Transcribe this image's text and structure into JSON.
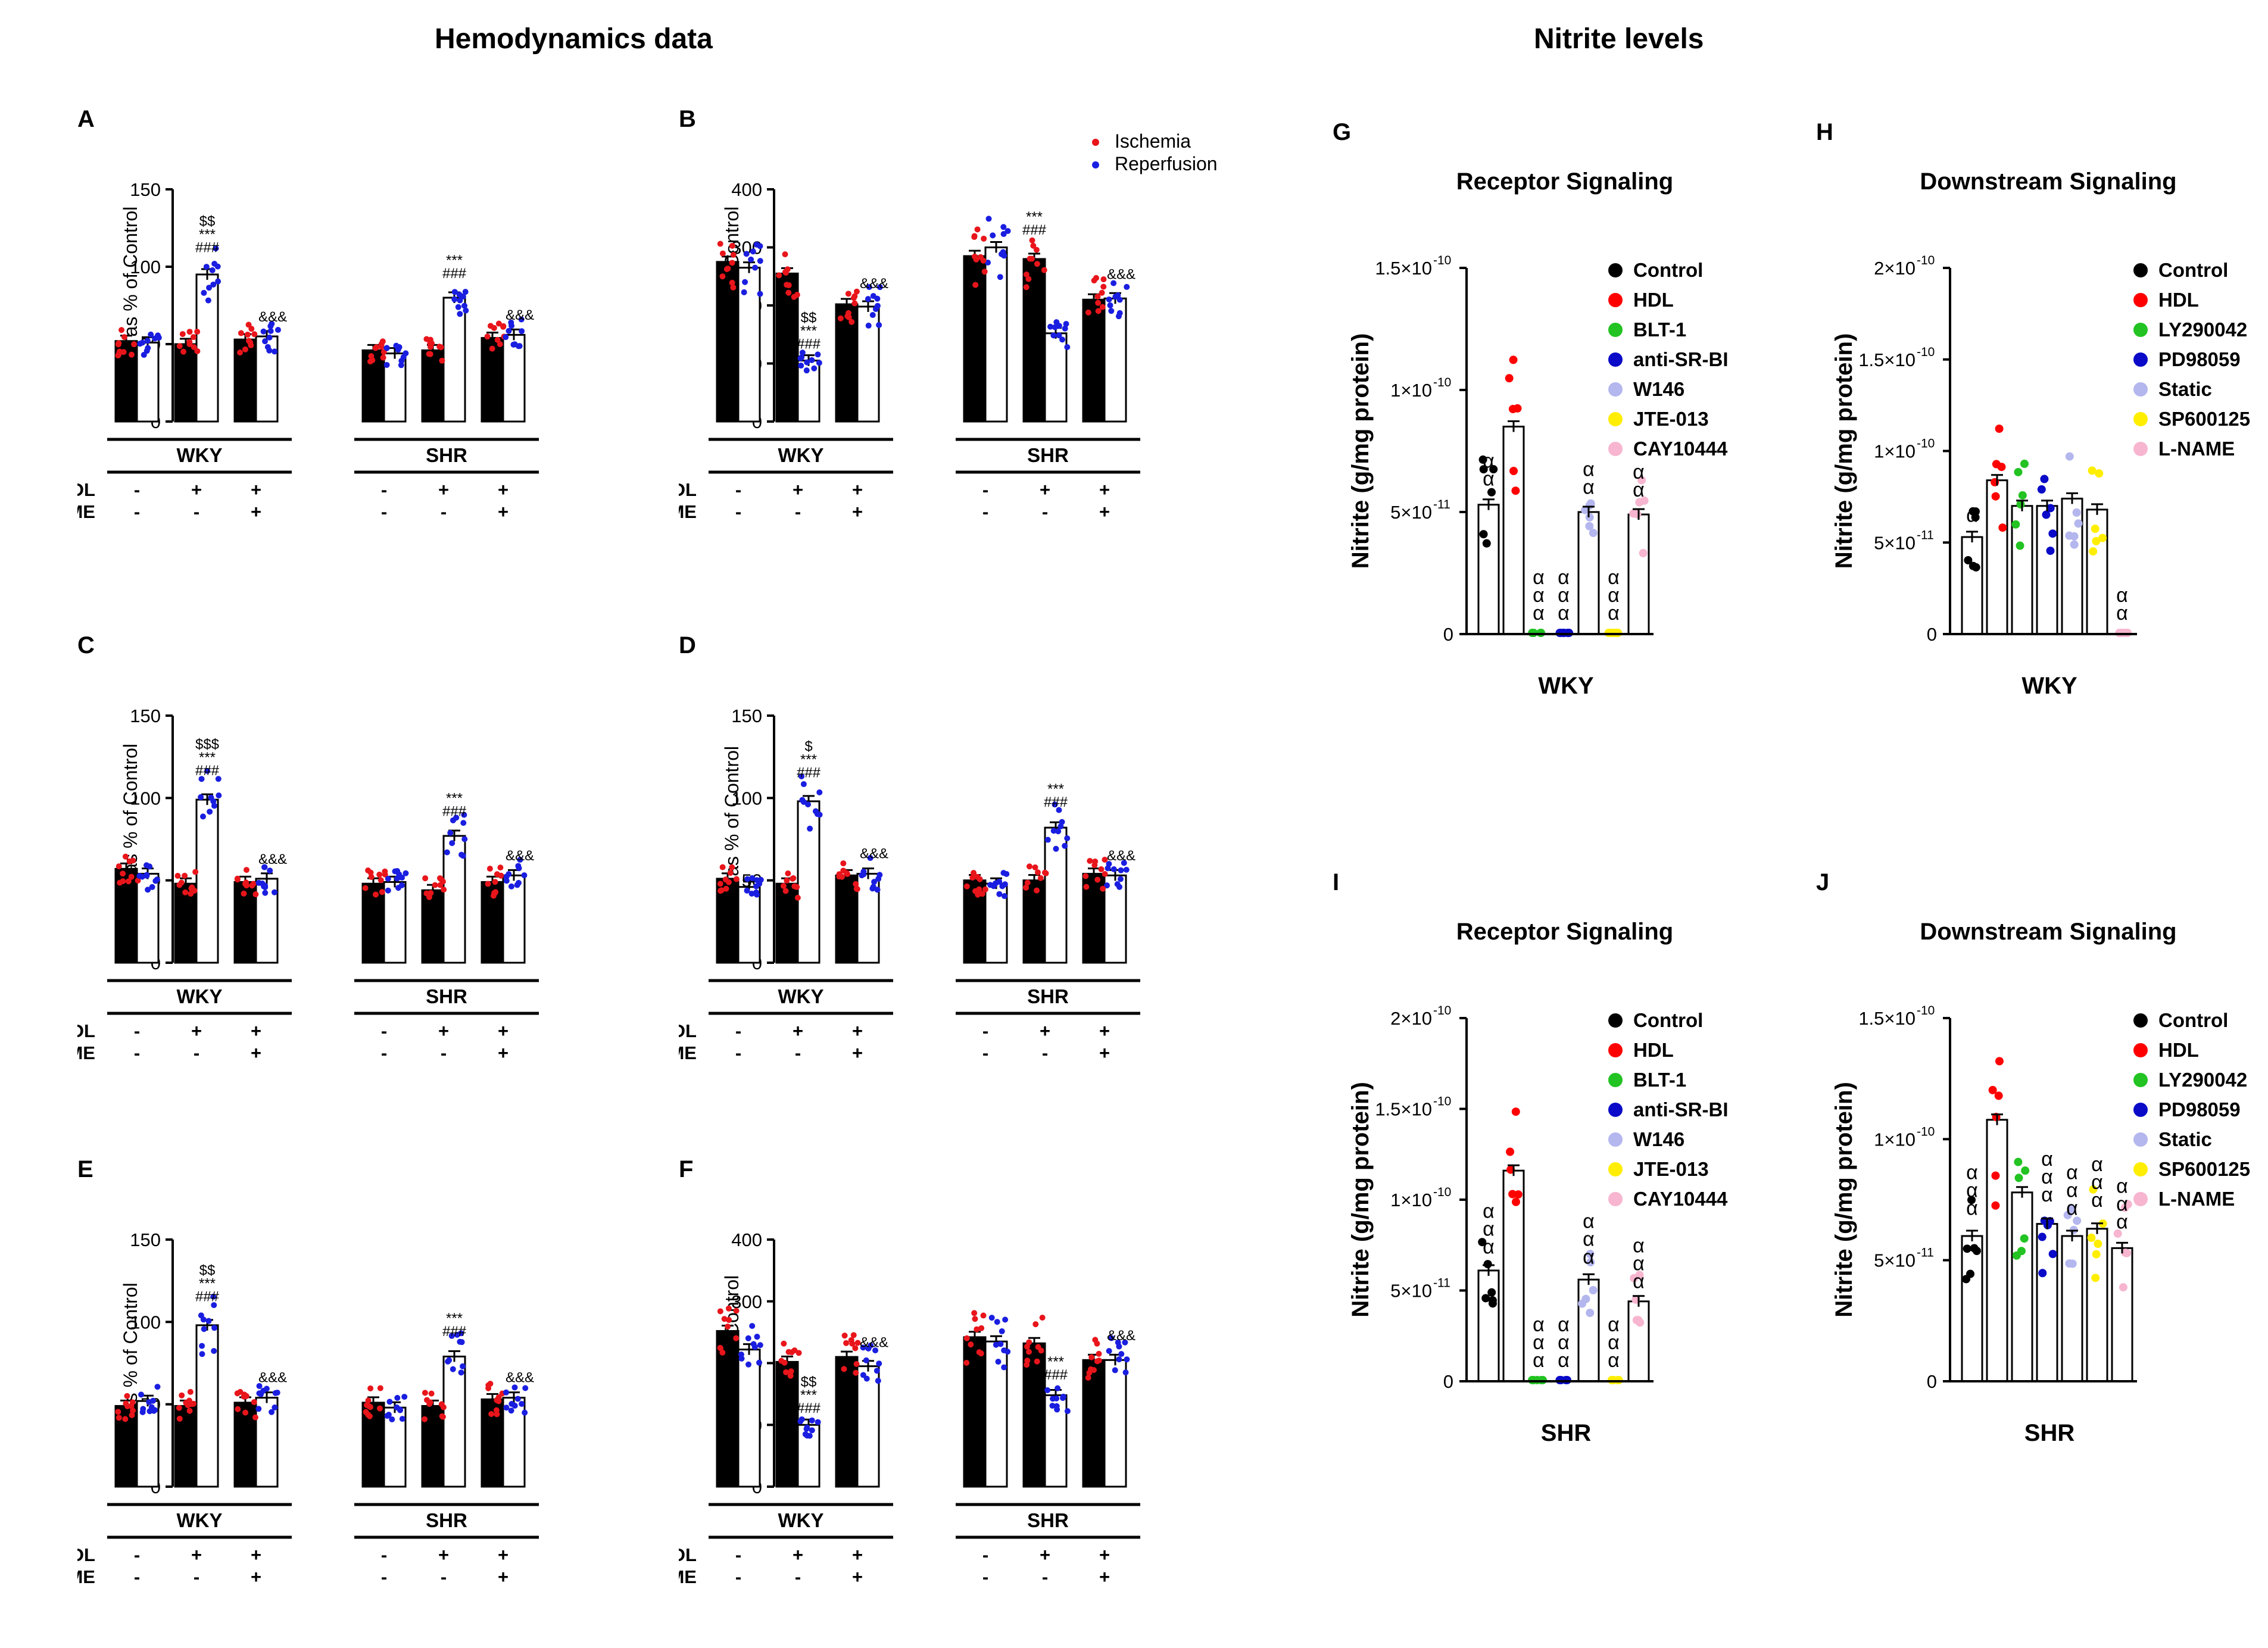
{
  "sections": {
    "left_title": "Hemodynamics data",
    "right_title": "Nitrite levels"
  },
  "colors": {
    "ischemia": "#e8151b",
    "reperfusion": "#1a1ee0",
    "Control": "#000000",
    "HDL": "#ff0000",
    "BLT-1": "#22c322",
    "anti-SR-BI": "#0a0ac8",
    "W146": "#b4b6ee",
    "JTE-013": "#ffee00",
    "CAY10444": "#f7b5cf",
    "LY290042": "#22c322",
    "PD98059": "#0a0ac8",
    "Static": "#b4b6ee",
    "SP600125": "#ffee00",
    "L-NAME": "#f7b5cf"
  },
  "chart_data": [
    {
      "id": "A",
      "type": "bar",
      "ylabel": "DPmax as % of Control",
      "ylim": [
        0,
        150
      ],
      "yticks": [
        0,
        50,
        100,
        150
      ],
      "groups": [
        "WKY",
        "SHR"
      ],
      "conditions": {
        "HDL": [
          "-",
          "+",
          "+",
          "-",
          "+",
          "+"
        ],
        "L-NAME": [
          "-",
          "-",
          "+",
          "-",
          "-",
          "+"
        ]
      },
      "series": [
        {
          "name": "Ischemia",
          "values": [
            52,
            50,
            53,
            46,
            46,
            54
          ]
        },
        {
          "name": "Reperfusion",
          "values": [
            51,
            95,
            55,
            44,
            80,
            56
          ]
        }
      ],
      "annotations": [
        {
          "index": 1,
          "series": "Reperfusion",
          "text": [
            "$$",
            "***",
            "###"
          ]
        },
        {
          "index": 4,
          "series": "Reperfusion",
          "text": [
            "***",
            "###"
          ]
        },
        {
          "index": 2,
          "series": "Reperfusion",
          "text": [
            "&&&"
          ]
        },
        {
          "index": 5,
          "series": "Reperfusion",
          "text": [
            "&&&"
          ]
        }
      ]
    },
    {
      "id": "B",
      "type": "bar",
      "ylabel": "LEVPD as % of Control",
      "ylim": [
        0,
        400
      ],
      "yticks": [
        0,
        100,
        200,
        300,
        400
      ],
      "groups": [
        "WKY",
        "SHR"
      ],
      "conditions": {
        "HDL": [
          "-",
          "+",
          "+",
          "-",
          "+",
          "+"
        ],
        "L-NAME": [
          "-",
          "-",
          "+",
          "-",
          "-",
          "+"
        ]
      },
      "legend": [
        "Ischemia",
        "Reperfusion"
      ],
      "series": [
        {
          "name": "Ischemia",
          "values": [
            275,
            255,
            202,
            285,
            280,
            210
          ]
        },
        {
          "name": "Reperfusion",
          "values": [
            265,
            105,
            198,
            300,
            152,
            212
          ]
        }
      ],
      "annotations": [
        {
          "index": 1,
          "series": "Reperfusion",
          "text": [
            "$$",
            "***",
            "###"
          ]
        },
        {
          "index": 4,
          "series": "Ischemia",
          "text": [
            "***",
            "###"
          ]
        },
        {
          "index": 2,
          "series": "Reperfusion",
          "text": [
            "&&&"
          ]
        },
        {
          "index": 5,
          "series": "Reperfusion",
          "text": [
            "&&&"
          ]
        }
      ]
    },
    {
      "id": "C",
      "type": "bar",
      "ylabel": "+dP/dt as % of Control",
      "ylim": [
        0,
        150
      ],
      "yticks": [
        0,
        50,
        100,
        150
      ],
      "groups": [
        "WKY",
        "SHR"
      ],
      "conditions": {
        "HDL": [
          "-",
          "+",
          "+",
          "-",
          "+",
          "+"
        ],
        "L-NAME": [
          "-",
          "-",
          "+",
          "-",
          "-",
          "+"
        ]
      },
      "series": [
        {
          "name": "Ischemia",
          "values": [
            57,
            48,
            49,
            48,
            44,
            49
          ]
        },
        {
          "name": "Reperfusion",
          "values": [
            54,
            99,
            51,
            49,
            77,
            53
          ]
        }
      ],
      "annotations": [
        {
          "index": 1,
          "series": "Reperfusion",
          "text": [
            "$$$",
            "***",
            "###"
          ]
        },
        {
          "index": 4,
          "series": "Reperfusion",
          "text": [
            "***",
            "###"
          ]
        },
        {
          "index": 2,
          "series": "Reperfusion",
          "text": [
            "&&&"
          ]
        },
        {
          "index": 5,
          "series": "Reperfusion",
          "text": [
            "&&&"
          ]
        }
      ]
    },
    {
      "id": "D",
      "type": "bar",
      "ylabel": "-dP/dt as % of Control",
      "ylim": [
        0,
        150
      ],
      "yticks": [
        0,
        50,
        100,
        150
      ],
      "groups": [
        "WKY",
        "SHR"
      ],
      "conditions": {
        "HDL": [
          "-",
          "+",
          "+",
          "-",
          "+",
          "+"
        ],
        "L-NAME": [
          "-",
          "-",
          "+",
          "-",
          "-",
          "+"
        ]
      },
      "series": [
        {
          "name": "Ischemia",
          "values": [
            51,
            48,
            53,
            50,
            50,
            54
          ]
        },
        {
          "name": "Reperfusion",
          "values": [
            46,
            98,
            54,
            48,
            82,
            53
          ]
        }
      ],
      "annotations": [
        {
          "index": 1,
          "series": "Reperfusion",
          "text": [
            "$",
            "***",
            "###"
          ]
        },
        {
          "index": 4,
          "series": "Reperfusion",
          "text": [
            "***",
            "###"
          ]
        },
        {
          "index": 2,
          "series": "Reperfusion",
          "text": [
            "&&&"
          ]
        },
        {
          "index": 5,
          "series": "Reperfusion",
          "text": [
            "&&&"
          ]
        }
      ]
    },
    {
      "id": "E",
      "type": "bar",
      "ylabel": "CF as % of Control",
      "ylim": [
        0,
        150
      ],
      "yticks": [
        0,
        50,
        100,
        150
      ],
      "groups": [
        "WKY",
        "SHR"
      ],
      "conditions": {
        "HDL": [
          "-",
          "+",
          "+",
          "-",
          "+",
          "+"
        ],
        "L-NAME": [
          "-",
          "-",
          "+",
          "-",
          "-",
          "+"
        ]
      },
      "series": [
        {
          "name": "Ischemia",
          "values": [
            49,
            49,
            51,
            51,
            49,
            53
          ]
        },
        {
          "name": "Reperfusion",
          "values": [
            52,
            98,
            54,
            48,
            79,
            54
          ]
        }
      ],
      "annotations": [
        {
          "index": 1,
          "series": "Reperfusion",
          "text": [
            "$$",
            "***",
            "###"
          ]
        },
        {
          "index": 4,
          "series": "Reperfusion",
          "text": [
            "***",
            "###"
          ]
        },
        {
          "index": 2,
          "series": "Reperfusion",
          "text": [
            "&&&"
          ]
        },
        {
          "index": 5,
          "series": "Reperfusion",
          "text": [
            "&&&"
          ]
        }
      ]
    },
    {
      "id": "F",
      "type": "bar",
      "ylabel": "CVR as % of Control",
      "ylim": [
        0,
        400
      ],
      "yticks": [
        0,
        100,
        200,
        300,
        400
      ],
      "groups": [
        "WKY",
        "SHR"
      ],
      "conditions": {
        "HDL": [
          "-",
          "+",
          "+",
          "-",
          "+",
          "+"
        ],
        "L-NAME": [
          "-",
          "-",
          "+",
          "-",
          "-",
          "+"
        ]
      },
      "series": [
        {
          "name": "Ischemia",
          "values": [
            252,
            202,
            210,
            242,
            232,
            205
          ]
        },
        {
          "name": "Reperfusion",
          "values": [
            222,
            100,
            195,
            235,
            148,
            205
          ]
        }
      ],
      "annotations": [
        {
          "index": 1,
          "series": "Reperfusion",
          "text": [
            "$$",
            "***",
            "###"
          ]
        },
        {
          "index": 4,
          "series": "Reperfusion",
          "text": [
            "***",
            "###"
          ]
        },
        {
          "index": 2,
          "series": "Reperfusion",
          "text": [
            "&&&"
          ]
        },
        {
          "index": 5,
          "series": "Reperfusion",
          "text": [
            "&&&"
          ]
        }
      ]
    },
    {
      "id": "G",
      "type": "bar",
      "title": "Receptor Signaling",
      "ylabel": "Nitrite (g/mg protein)",
      "xlabel": "WKY",
      "ylim": [
        0,
        1.5e-10
      ],
      "yticks": [
        {
          "value": 0,
          "label": "0"
        },
        {
          "value": 5e-11,
          "label": "5×10",
          "exp": "-11"
        },
        {
          "value": 1e-10,
          "label": "1×10",
          "exp": "-10"
        },
        {
          "value": 1.5e-10,
          "label": "1.5×10",
          "exp": "-10"
        }
      ],
      "categories": [
        "Control",
        "HDL",
        "BLT-1",
        "anti-SR-BI",
        "W146",
        "JTE-013",
        "CAY10444"
      ],
      "values": [
        5.3e-11,
        8.5e-11,
        0,
        0,
        5e-11,
        0,
        4.9e-11
      ],
      "annotations": [
        "αα",
        "",
        "ααα",
        "ααα",
        "αα",
        "ααα",
        "αα"
      ],
      "legend": [
        "Control",
        "HDL",
        "BLT-1",
        "anti-SR-BI",
        "W146",
        "JTE-013",
        "CAY10444"
      ]
    },
    {
      "id": "H",
      "type": "bar",
      "title": "Downstream Signaling",
      "ylabel": "Nitrite (g/mg protein)",
      "xlabel": "WKY",
      "ylim": [
        0,
        2e-10
      ],
      "yticks": [
        {
          "value": 0,
          "label": "0"
        },
        {
          "value": 5e-11,
          "label": "5×10",
          "exp": "-11"
        },
        {
          "value": 1e-10,
          "label": "1×10",
          "exp": "-10"
        },
        {
          "value": 1.5e-10,
          "label": "1.5×10",
          "exp": "-10"
        },
        {
          "value": 2e-10,
          "label": "2×10",
          "exp": "-10"
        }
      ],
      "categories": [
        "Control",
        "HDL",
        "LY290042",
        "PD98059",
        "Static",
        "SP600125",
        "L-NAME"
      ],
      "values": [
        5.3e-11,
        8.4e-11,
        7e-11,
        7e-11,
        7.4e-11,
        6.8e-11,
        0
      ],
      "annotations": [
        "α",
        "",
        "",
        "",
        "",
        "",
        "αα"
      ],
      "legend": [
        "Control",
        "HDL",
        "LY290042",
        "PD98059",
        "Static",
        "SP600125",
        "L-NAME"
      ]
    },
    {
      "id": "I",
      "type": "bar",
      "title": "Receptor Signaling",
      "ylabel": "Nitrite (g/mg protein)",
      "xlabel": "SHR",
      "ylim": [
        0,
        2e-10
      ],
      "yticks": [
        {
          "value": 0,
          "label": "0"
        },
        {
          "value": 5e-11,
          "label": "5×10",
          "exp": "-11"
        },
        {
          "value": 1e-10,
          "label": "1×10",
          "exp": "-10"
        },
        {
          "value": 1.5e-10,
          "label": "1.5×10",
          "exp": "-10"
        },
        {
          "value": 2e-10,
          "label": "2×10",
          "exp": "-10"
        }
      ],
      "categories": [
        "Control",
        "HDL",
        "BLT-1",
        "anti-SR-BI",
        "W146",
        "JTE-013",
        "CAY10444"
      ],
      "values": [
        6.1e-11,
        1.16e-10,
        0,
        0,
        5.6e-11,
        0,
        4.4e-11
      ],
      "annotations": [
        "ααα",
        "",
        "ααα",
        "ααα",
        "ααα",
        "ααα",
        "ααα"
      ],
      "legend": [
        "Control",
        "HDL",
        "BLT-1",
        "anti-SR-BI",
        "W146",
        "JTE-013",
        "CAY10444"
      ]
    },
    {
      "id": "J",
      "type": "bar",
      "title": "Downstream Signaling",
      "ylabel": "Nitrite (g/mg protein)",
      "xlabel": "SHR",
      "ylim": [
        0,
        1.5e-10
      ],
      "yticks": [
        {
          "value": 0,
          "label": "0"
        },
        {
          "value": 5e-11,
          "label": "5×10",
          "exp": "-11"
        },
        {
          "value": 1e-10,
          "label": "1×10",
          "exp": "-10"
        },
        {
          "value": 1.5e-10,
          "label": "1.5×10",
          "exp": "-10"
        }
      ],
      "categories": [
        "Control",
        "HDL",
        "LY290042",
        "PD98059",
        "Static",
        "SP600125",
        "L-NAME"
      ],
      "values": [
        6e-11,
        1.08e-10,
        7.8e-11,
        6.5e-11,
        6e-11,
        6.3e-11,
        5.5e-11
      ],
      "annotations": [
        "ααα",
        "",
        "",
        "ααα",
        "ααα",
        "ααα",
        "ααα"
      ],
      "legend": [
        "Control",
        "HDL",
        "LY290042",
        "PD98059",
        "Static",
        "SP600125",
        "L-NAME"
      ]
    }
  ]
}
